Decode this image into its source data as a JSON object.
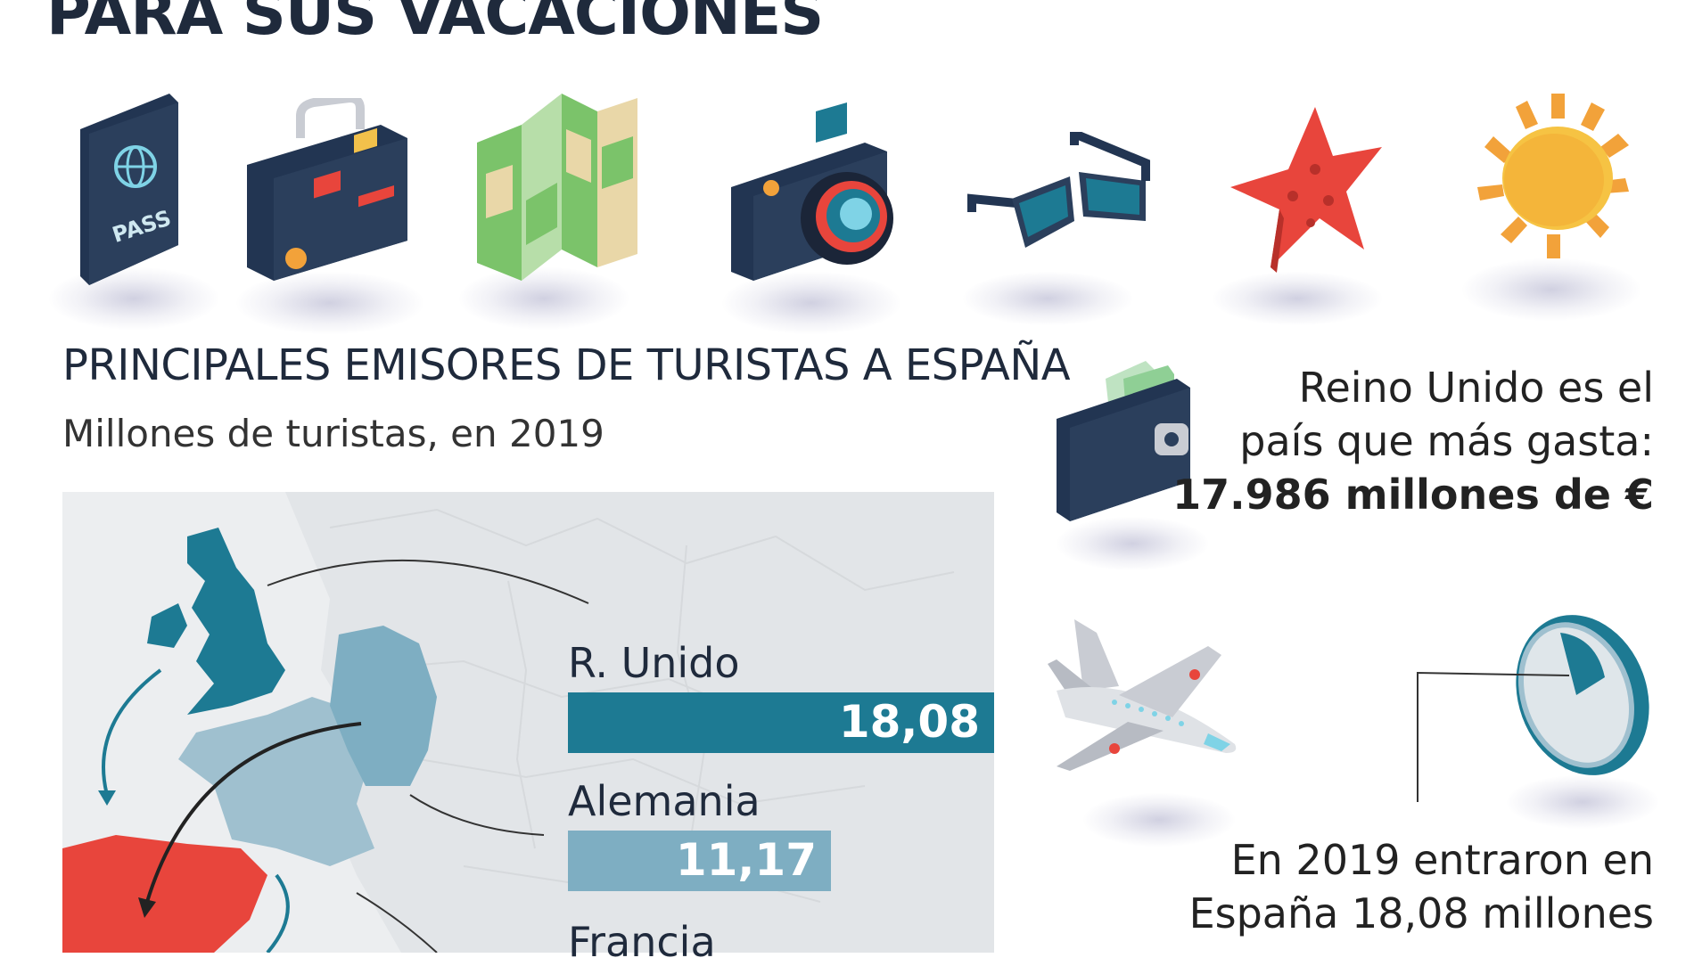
{
  "headline": "PARA SUS VACACIONES",
  "icons": [
    "passport-icon",
    "suitcase-icon",
    "map-icon",
    "camera-icon",
    "sunglasses-icon",
    "starfish-icon",
    "sun-icon"
  ],
  "passport_text": "PASS",
  "chart_data": {
    "type": "bar",
    "title": "PRINCIPALES EMISORES DE TURISTAS A ESPAÑA",
    "subtitle": "Millones de turistas, en 2019",
    "categories": [
      "R. Unido",
      "Alemania",
      "Francia"
    ],
    "values": [
      18.08,
      11.17,
      null
    ],
    "value_labels": [
      "18,08",
      "11,17",
      ""
    ],
    "colors": [
      "#1d7a93",
      "#7eaec2",
      "#9fc0cf"
    ],
    "xlim": [
      0,
      18.08
    ]
  },
  "side": {
    "spend_line1": "Reino Unido es el",
    "spend_line2": "país que más gasta:",
    "spend_value": "17.986 millones de €",
    "entry_line1": "En 2019 entraron en",
    "entry_line2": "España 18,08 millones"
  },
  "colors": {
    "uk": "#1d7a93",
    "germany": "#7eaec2",
    "france": "#9fc0cf",
    "spain": "#e8453c",
    "navy": "#2b3f5c"
  }
}
